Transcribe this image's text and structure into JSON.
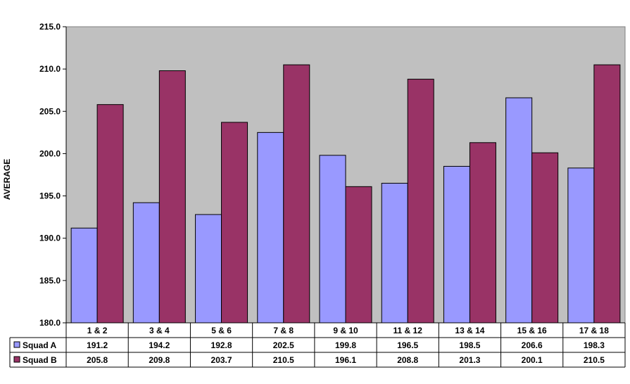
{
  "chart_data": {
    "type": "bar",
    "title": "",
    "xlabel": "",
    "ylabel": "AVERAGE",
    "ylim": [
      180,
      215
    ],
    "yticks": [
      "215.0",
      "210.0",
      "205.0",
      "200.0",
      "195.0",
      "190.0",
      "185.0",
      "180.0"
    ],
    "categories": [
      "1 & 2",
      "3 & 4",
      "5 & 6",
      "7 & 8",
      "9 & 10",
      "11 & 12",
      "13 & 14",
      "15 & 16",
      "17 & 18"
    ],
    "series": [
      {
        "name": "Squad A",
        "color": "#9999ff",
        "values": [
          191.2,
          194.2,
          192.8,
          202.5,
          199.8,
          196.5,
          198.5,
          206.6,
          198.3
        ],
        "labels": [
          "191.2",
          "194.2",
          "192.8",
          "202.5",
          "199.8",
          "196.5",
          "198.5",
          "206.6",
          "198.3"
        ]
      },
      {
        "name": "Squad B",
        "color": "#993366",
        "values": [
          205.8,
          209.8,
          203.7,
          210.5,
          196.1,
          208.8,
          201.3,
          200.1,
          210.5
        ],
        "labels": [
          "205.8",
          "209.8",
          "203.7",
          "210.5",
          "196.1",
          "208.8",
          "201.3",
          "200.1",
          "210.5"
        ]
      }
    ],
    "grid": false,
    "legend": "data-table",
    "plot_background": "#c0c0c0"
  }
}
